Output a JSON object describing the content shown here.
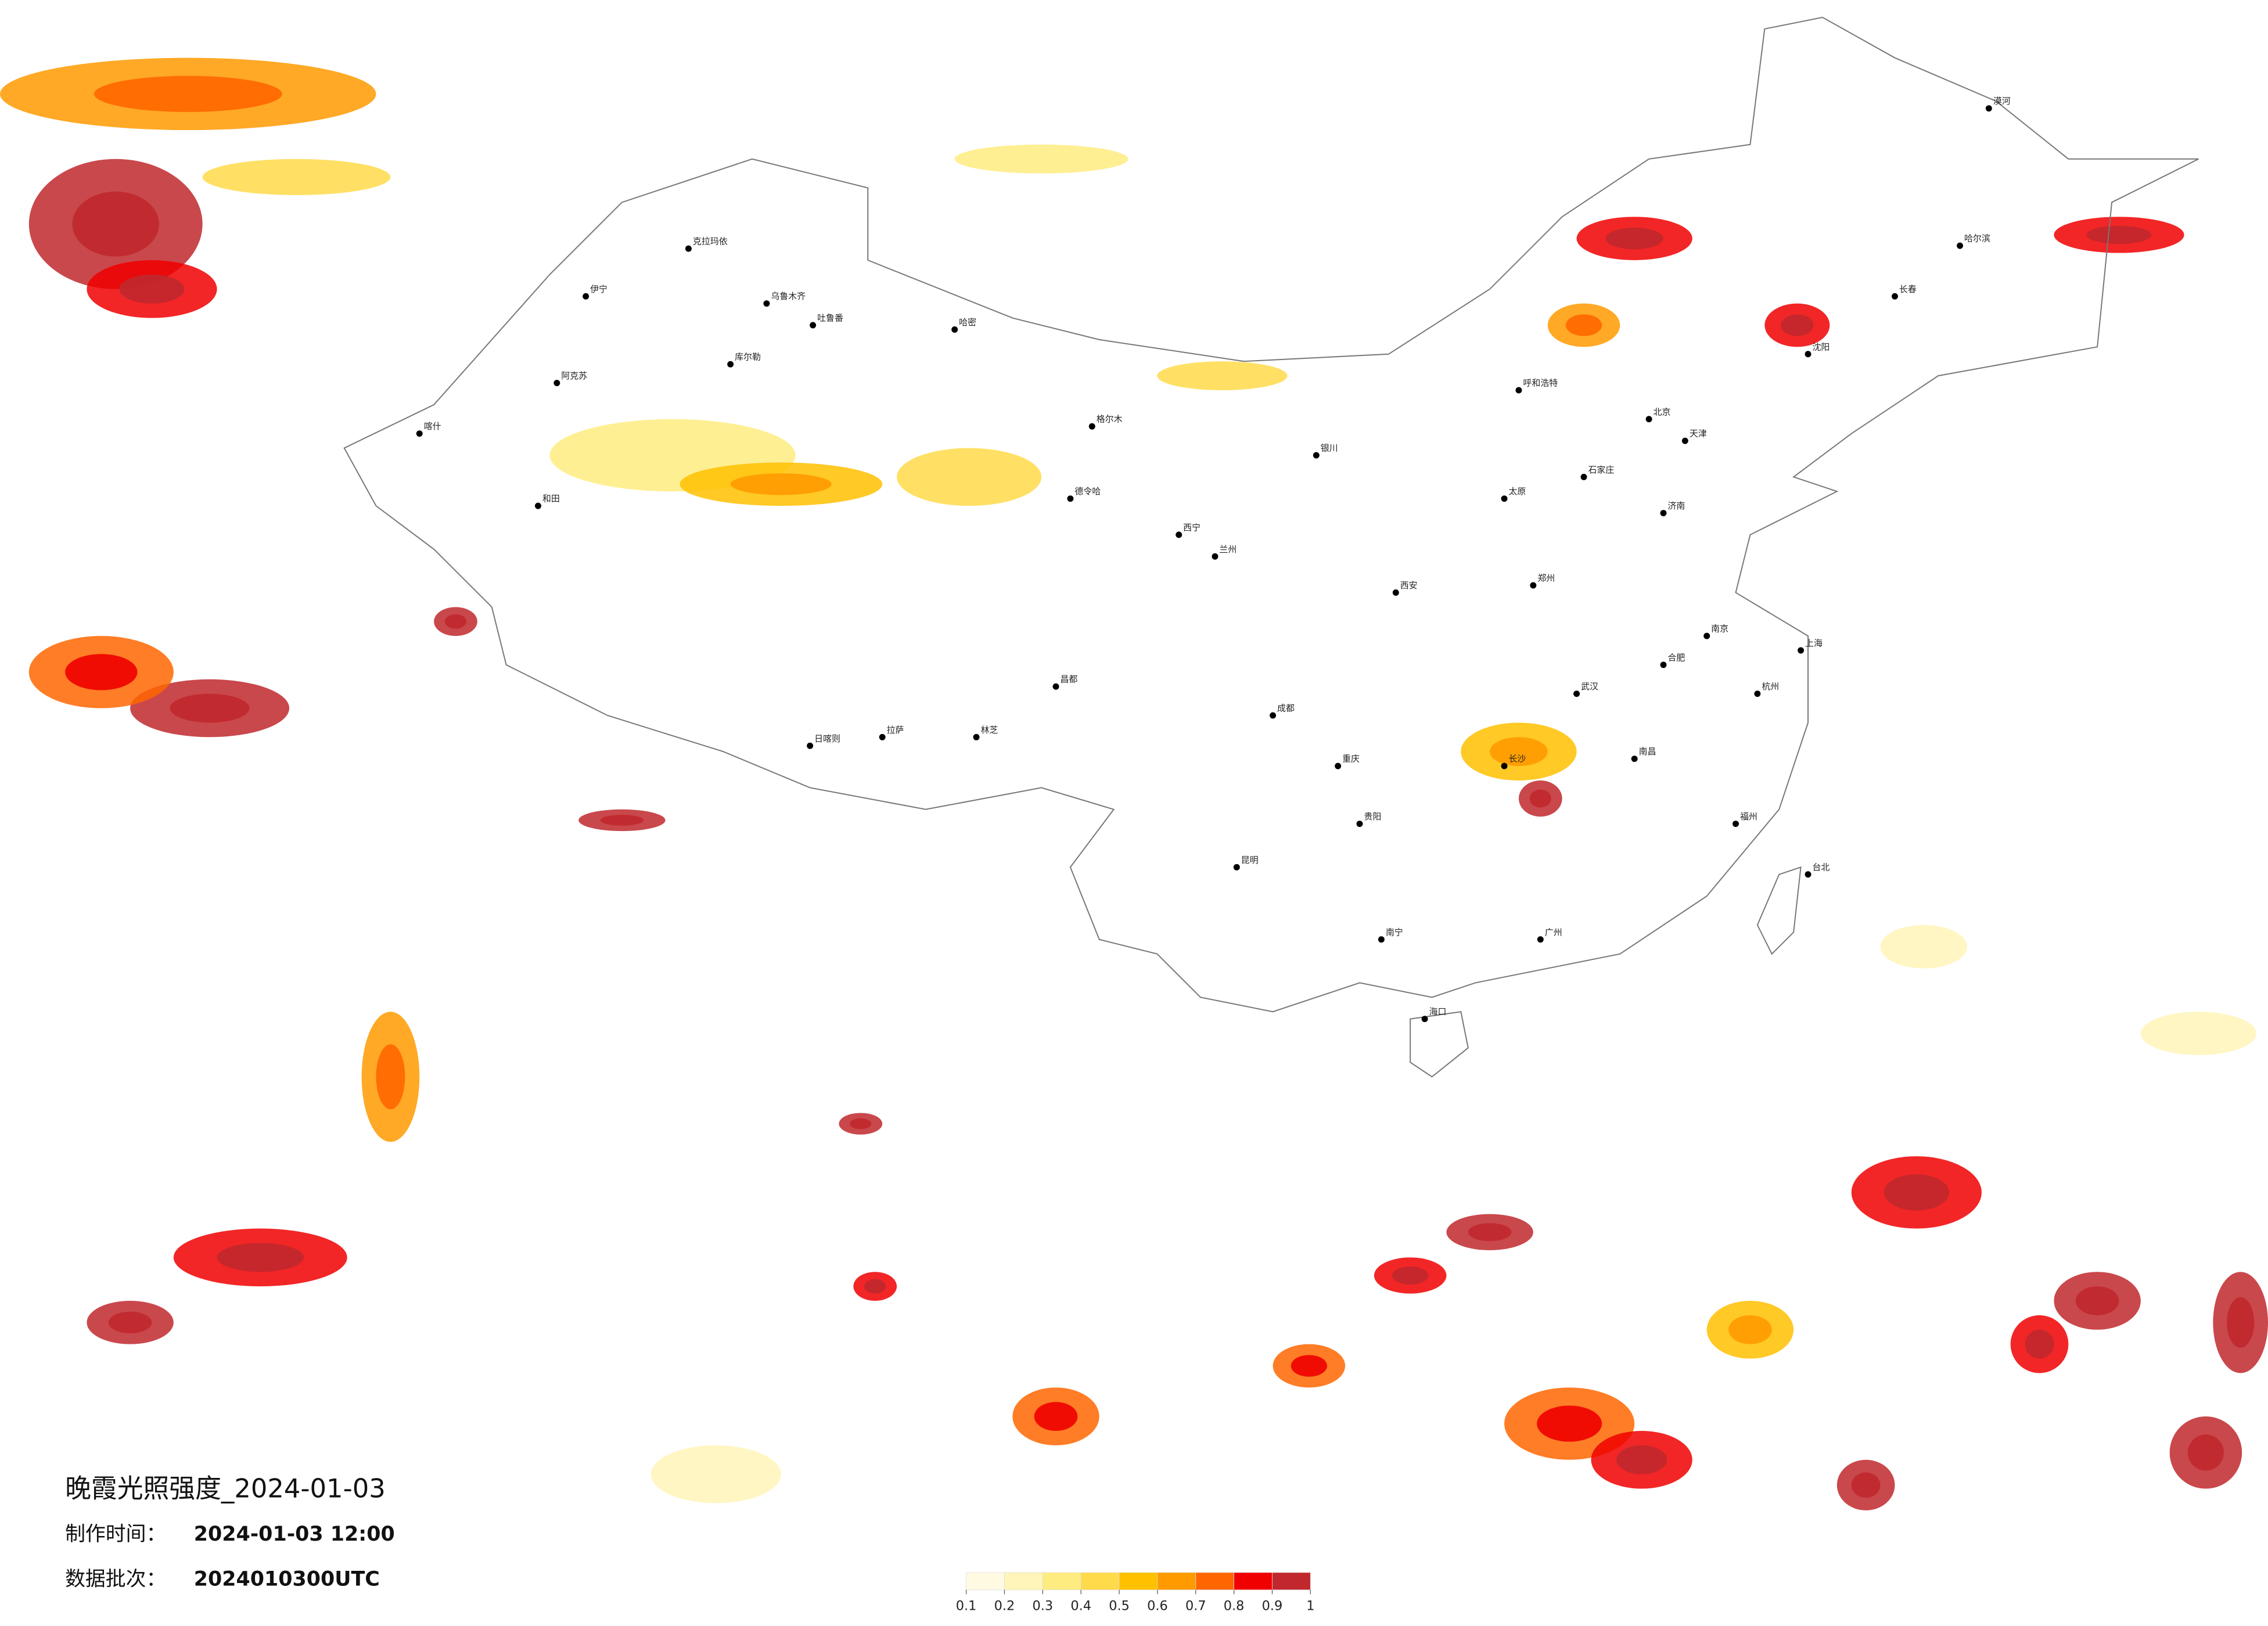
{
  "header": {
    "title": "晚霞光照强度_2024-01-03",
    "made_label": "制作时间：",
    "made_time": "2024-01-03 12:00",
    "batch_label": "数据批次：",
    "batch": "2024010300UTC"
  },
  "legend": {
    "colors": [
      "#fffbe3",
      "#fff5b8",
      "#ffec80",
      "#ffda4a",
      "#ffc000",
      "#ff9a00",
      "#ff6600",
      "#f00000",
      "#c0282d"
    ],
    "ticks": [
      0.1,
      0.2,
      0.3,
      0.4,
      0.5,
      0.6,
      0.7,
      0.8,
      0.9,
      1
    ]
  },
  "cities": [
    "克拉玛依",
    "乌鲁木齐",
    "伊宁",
    "吐鲁番",
    "哈密",
    "库尔勒",
    "阿克苏",
    "喀什",
    "和田",
    "格尔木",
    "德令哈",
    "西宁",
    "兰州",
    "拉萨",
    "日喀则",
    "林芝",
    "昌都",
    "成都",
    "重庆",
    "贵阳",
    "昆明",
    "南宁",
    "海口",
    "广州",
    "长沙",
    "武汉",
    "南昌",
    "福州",
    "杭州",
    "上海",
    "南京",
    "合肥",
    "郑州",
    "济南",
    "石家庄",
    "北京",
    "天津",
    "太原",
    "西安",
    "银川",
    "呼和浩特",
    "沈阳",
    "长春",
    "哈尔滨",
    "台北",
    "漠河"
  ]
}
